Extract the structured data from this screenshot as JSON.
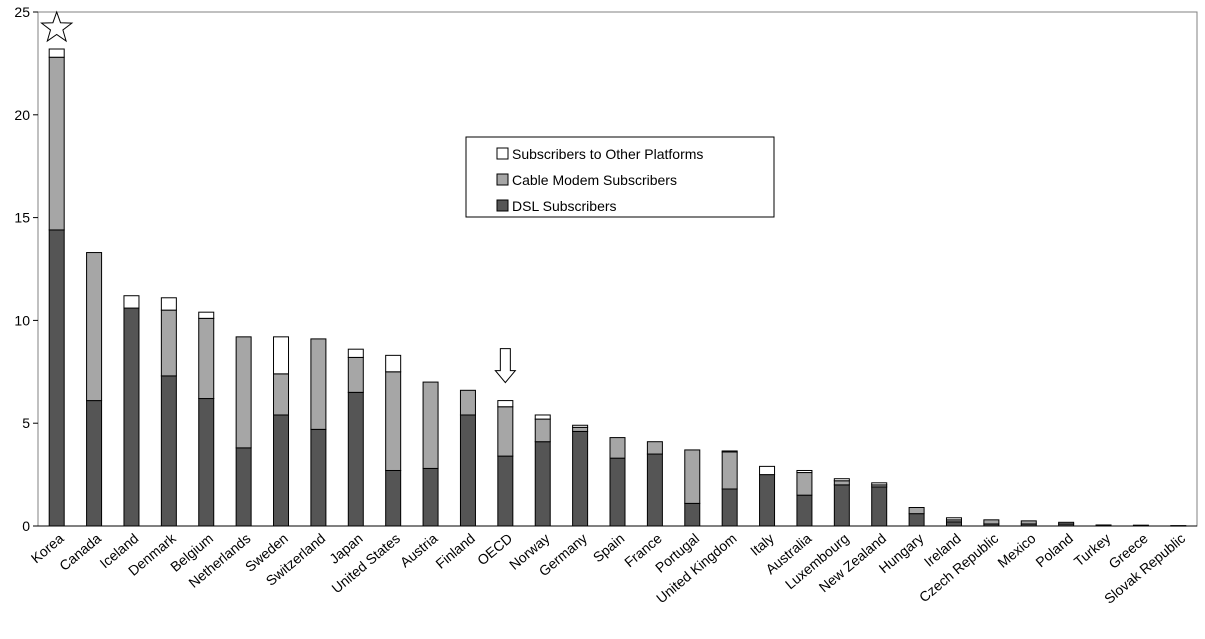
{
  "chart_data": {
    "type": "bar",
    "stacked": true,
    "categories": [
      "Korea",
      "Canada",
      "Iceland",
      "Denmark",
      "Belgium",
      "Netherlands",
      "Sweden",
      "Switzerland",
      "Japan",
      "United States",
      "Austria",
      "Finland",
      "OECD",
      "Norway",
      "Germany",
      "Spain",
      "France",
      "Portugal",
      "United Kingdom",
      "Italy",
      "Australia",
      "Luxembourg",
      "New Zealand",
      "Hungary",
      "Ireland",
      "Czech Republic",
      "Mexico",
      "Poland",
      "Turkey",
      "Greece",
      "Slovak Republic"
    ],
    "series": [
      {
        "name": "DSL Subscribers",
        "color": "#555555",
        "values": [
          14.4,
          6.1,
          10.6,
          7.3,
          6.2,
          3.8,
          5.4,
          4.7,
          6.5,
          2.7,
          2.8,
          5.4,
          3.4,
          4.1,
          4.6,
          3.3,
          3.5,
          1.1,
          1.8,
          2.5,
          1.5,
          2.0,
          1.9,
          0.6,
          0.2,
          0.1,
          0.1,
          0.1,
          0.05,
          0.04,
          0.02
        ]
      },
      {
        "name": "Cable Modem Subscribers",
        "color": "#a6a6a6",
        "values": [
          8.4,
          7.2,
          0.0,
          3.2,
          3.9,
          5.4,
          2.0,
          4.4,
          1.7,
          4.8,
          4.2,
          1.2,
          2.4,
          1.1,
          0.2,
          1.0,
          0.6,
          2.6,
          1.8,
          0.0,
          1.1,
          0.2,
          0.1,
          0.3,
          0.1,
          0.2,
          0.15,
          0.08,
          0.0,
          0.0,
          0.0
        ]
      },
      {
        "name": "Subscribers to Other Platforms",
        "color": "#ffffff",
        "values": [
          0.4,
          0.0,
          0.6,
          0.6,
          0.3,
          0.0,
          1.8,
          0.0,
          0.4,
          0.8,
          0.0,
          0.0,
          0.3,
          0.2,
          0.1,
          0.0,
          0.0,
          0.0,
          0.05,
          0.4,
          0.1,
          0.1,
          0.1,
          0.0,
          0.1,
          0.0,
          0.0,
          0.0,
          0.0,
          0.0,
          0.0
        ]
      }
    ],
    "ylim": [
      0,
      25
    ],
    "yticks": [
      "0",
      "5",
      "10",
      "15",
      "20",
      "25"
    ],
    "legend_position": "center",
    "legend_order": [
      "Subscribers to Other Platforms",
      "Cable Modem Subscribers",
      "DSL Subscribers"
    ],
    "markers": [
      {
        "category": "Korea",
        "shape": "star"
      },
      {
        "category": "OECD",
        "shape": "down-arrow"
      }
    ],
    "grid": false,
    "title": "",
    "xlabel": "",
    "ylabel": ""
  }
}
